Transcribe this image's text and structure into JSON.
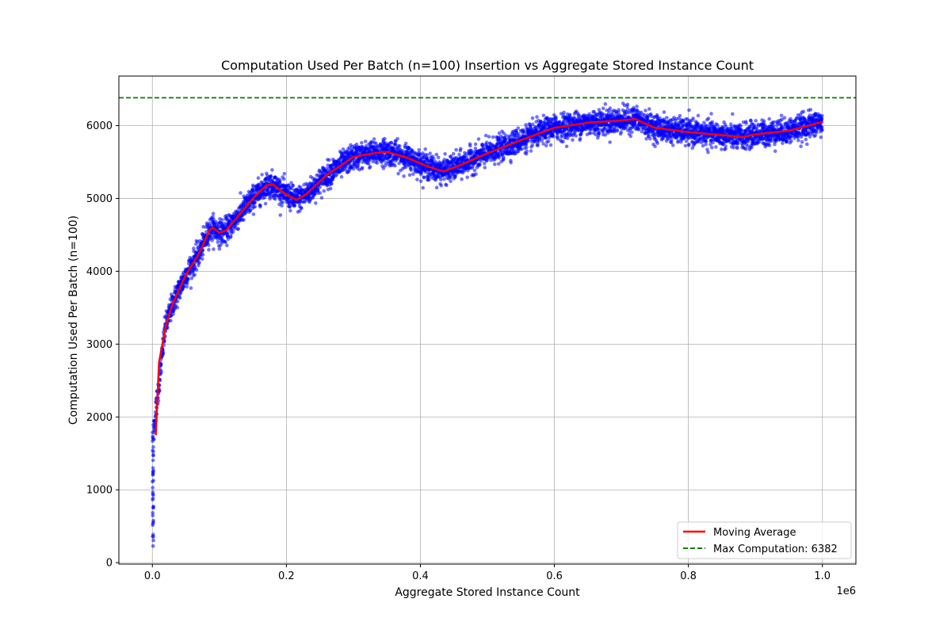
{
  "chart_data": {
    "type": "scatter",
    "title": "Computation Used Per Batch (n=100) Insertion vs Aggregate Stored Instance Count",
    "xlabel": "Aggregate Stored Instance Count",
    "ylabel": "Computation Used Per Batch (n=100)",
    "x_offset_label": "1e6",
    "xlim": [
      -50000,
      1050000
    ],
    "ylim": [
      -20,
      6680
    ],
    "x_ticks": [
      0,
      200000,
      400000,
      600000,
      800000,
      1000000
    ],
    "x_tick_labels": [
      "0.0",
      "0.2",
      "0.4",
      "0.6",
      "0.8",
      "1.0"
    ],
    "y_ticks": [
      0,
      1000,
      2000,
      3000,
      4000,
      5000,
      6000
    ],
    "y_tick_labels": [
      "0",
      "1000",
      "2000",
      "3000",
      "4000",
      "5000",
      "6000"
    ],
    "grid": true,
    "legend_position": "lower-right",
    "scatter_series": {
      "name": "",
      "color": "#0000ff",
      "x_range": [
        100,
        1000000
      ],
      "y_min": 290,
      "y_max": 6382,
      "note_points": "dense per-batch scatter (10000 batches) around the moving average"
    },
    "moving_average": {
      "name": "Moving Average",
      "color": "#ff0000",
      "x": [
        5000,
        10000,
        20000,
        30000,
        50000,
        70000,
        85000,
        90000,
        100000,
        110000,
        130000,
        150000,
        170000,
        180000,
        200000,
        215000,
        230000,
        260000,
        300000,
        330000,
        350000,
        380000,
        400000,
        420000,
        435000,
        460000,
        500000,
        550000,
        600000,
        650000,
        700000,
        720000,
        750000,
        800000,
        850000,
        880000,
        900000,
        950000,
        1000000
      ],
      "y": [
        1750,
        2750,
        3250,
        3550,
        3950,
        4250,
        4560,
        4600,
        4530,
        4560,
        4780,
        5000,
        5180,
        5190,
        5050,
        4980,
        5060,
        5320,
        5570,
        5620,
        5640,
        5560,
        5480,
        5410,
        5370,
        5460,
        5620,
        5800,
        5970,
        6040,
        6070,
        6090,
        5970,
        5910,
        5870,
        5840,
        5880,
        5930,
        6050
      ]
    },
    "reference_line": {
      "name": "Max Computation: 6382",
      "value": 6382,
      "color": "#008000",
      "style": "dashed"
    }
  }
}
